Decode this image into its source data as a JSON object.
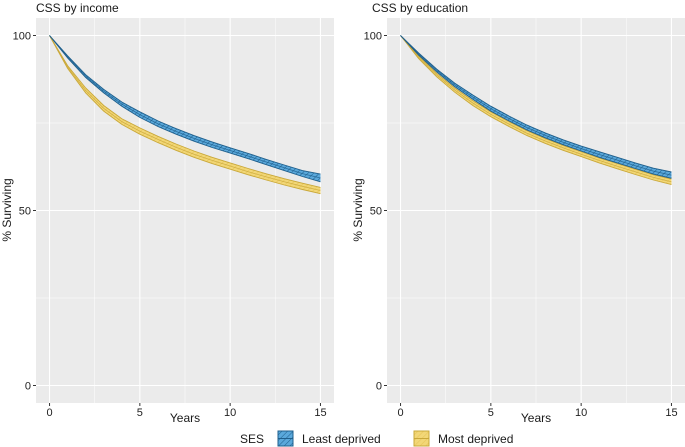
{
  "legend": {
    "title": "SES",
    "items": [
      {
        "label": "Least deprived",
        "fill": "#5aa8db",
        "line": "#1f5f8c",
        "hatch": "#1f5f8c"
      },
      {
        "label": "Most deprived",
        "fill": "#f2d777",
        "line": "#c9a83a",
        "hatch": "#e8c65a"
      }
    ]
  },
  "colors": {
    "panel_bg": "#ebebeb",
    "gridline": "#ffffff"
  },
  "chart_data": [
    {
      "type": "area",
      "title": "CSS by income",
      "xlabel": "Years",
      "ylabel": "% Surviving",
      "xlim": [
        -0.75,
        15.75
      ],
      "ylim": [
        0,
        100
      ],
      "xticks": [
        0,
        5,
        10,
        15
      ],
      "yticks": [
        0,
        50,
        100
      ],
      "x": [
        0,
        1,
        2,
        3,
        4,
        5,
        6,
        7,
        8,
        9,
        10,
        11,
        12,
        13,
        14,
        15
      ],
      "series": [
        {
          "name": "Least deprived",
          "lower": [
            100,
            93.6,
            88.0,
            83.6,
            79.8,
            76.6,
            74.0,
            71.8,
            69.8,
            68.0,
            66.4,
            64.8,
            63.1,
            61.4,
            59.7,
            58.2
          ],
          "upper": [
            100,
            94.2,
            88.8,
            84.6,
            81.0,
            78.2,
            75.6,
            73.4,
            71.4,
            69.6,
            67.9,
            66.3,
            64.6,
            63.0,
            61.4,
            60.4
          ]
        },
        {
          "name": "Most deprived",
          "lower": [
            100,
            90.6,
            83.6,
            78.4,
            74.6,
            71.8,
            69.4,
            67.2,
            65.2,
            63.4,
            61.8,
            60.2,
            58.7,
            57.3,
            56.0,
            54.8
          ],
          "upper": [
            100,
            91.4,
            85.0,
            80.0,
            76.2,
            73.6,
            71.2,
            69.0,
            67.0,
            65.2,
            63.6,
            62.0,
            60.5,
            59.1,
            57.8,
            56.6
          ]
        }
      ]
    },
    {
      "type": "area",
      "title": "CSS by education",
      "xlabel": "Years",
      "ylabel": "% Surviving",
      "xlim": [
        -0.75,
        15.75
      ],
      "ylim": [
        0,
        100
      ],
      "xticks": [
        0,
        5,
        10,
        15
      ],
      "yticks": [
        0,
        50,
        100
      ],
      "x": [
        0,
        1,
        2,
        3,
        4,
        5,
        6,
        7,
        8,
        9,
        10,
        11,
        12,
        13,
        14,
        15
      ],
      "series": [
        {
          "name": "Least deprived",
          "lower": [
            100,
            94.4,
            89.6,
            85.4,
            81.8,
            78.4,
            75.6,
            73.0,
            70.8,
            68.8,
            67.0,
            65.2,
            63.6,
            62.0,
            60.4,
            59.2
          ],
          "upper": [
            100,
            95.0,
            90.4,
            86.4,
            83.0,
            79.8,
            77.0,
            74.4,
            72.2,
            70.2,
            68.4,
            66.8,
            65.2,
            63.6,
            62.1,
            61.0
          ]
        },
        {
          "name": "Most deprived",
          "lower": [
            100,
            93.4,
            88.2,
            83.8,
            80.0,
            76.8,
            74.0,
            71.4,
            69.2,
            67.2,
            65.4,
            63.6,
            61.9,
            60.3,
            58.7,
            57.4
          ],
          "upper": [
            100,
            94.2,
            89.2,
            85.0,
            81.4,
            78.2,
            75.4,
            72.8,
            70.6,
            68.6,
            66.8,
            65.0,
            63.4,
            61.8,
            60.2,
            59.0
          ]
        }
      ]
    }
  ]
}
